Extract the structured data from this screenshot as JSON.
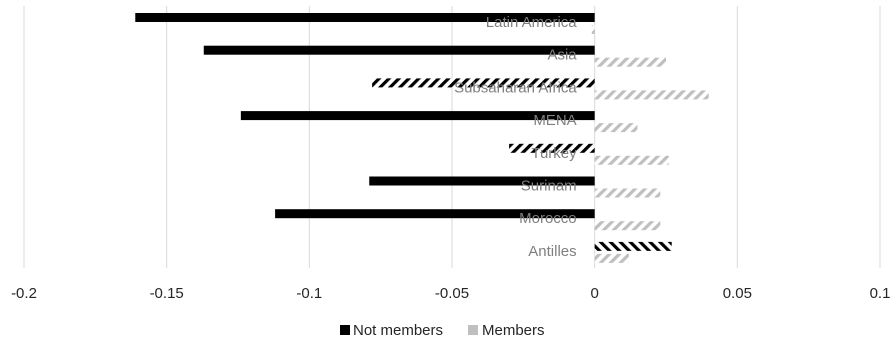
{
  "chart_data": {
    "type": "bar",
    "orientation": "horizontal",
    "categories": [
      "Latin America",
      "Asia",
      "Subsaharan Africa",
      "MENA",
      "Turkey",
      "Surinam",
      "Morocco",
      "Antilles"
    ],
    "series": [
      {
        "name": "Not members",
        "values": [
          -0.161,
          -0.137,
          -0.078,
          -0.124,
          -0.03,
          -0.079,
          -0.112,
          0.027
        ],
        "hatched": [
          false,
          false,
          true,
          false,
          true,
          false,
          false,
          true
        ]
      },
      {
        "name": "Members",
        "values": [
          -0.001,
          0.025,
          0.04,
          0.015,
          0.026,
          0.023,
          0.023,
          0.012
        ],
        "hatched": [
          true,
          true,
          true,
          true,
          true,
          true,
          true,
          true
        ]
      }
    ],
    "xlim": [
      -0.2,
      0.1
    ],
    "xticks": [
      "-0.2",
      "-0.15",
      "-0.1",
      "-0.05",
      "0",
      "0.05",
      "0.1"
    ],
    "xtick_values": [
      -0.2,
      -0.15,
      -0.1,
      -0.05,
      0,
      0.05,
      0.1
    ],
    "gridlines": "vertical",
    "legend_position": "bottom",
    "colors": {
      "not_members": "#000000",
      "members": "#bfbfbf",
      "grid": "#d9d9d9",
      "category_label": "#7f7f7f"
    }
  }
}
